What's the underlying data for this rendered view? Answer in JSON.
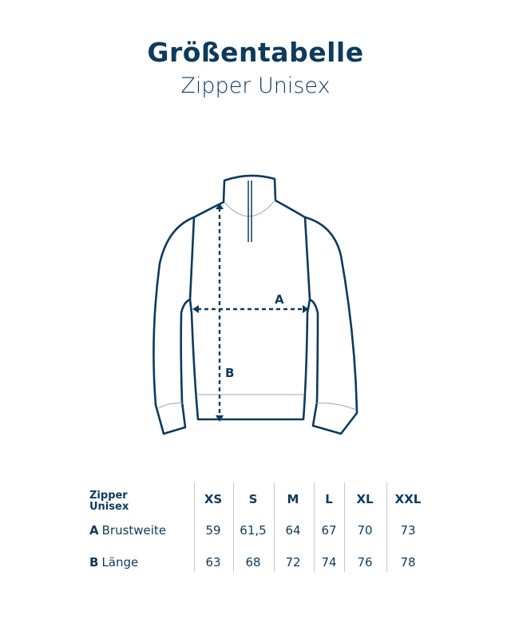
{
  "header": {
    "title": "Größentabelle",
    "subtitle": "Zipper Unisex"
  },
  "illustration": {
    "label_a": "A",
    "label_b": "B"
  },
  "table": {
    "corner_line1": "Zipper",
    "corner_line2": "Unisex",
    "sizes": [
      "XS",
      "S",
      "M",
      "L",
      "XL",
      "XXL"
    ],
    "rows": [
      {
        "key": "A",
        "label": "Brustweite",
        "values": [
          "59",
          "61,5",
          "64",
          "67",
          "70",
          "73"
        ]
      },
      {
        "key": "B",
        "label": "Länge",
        "values": [
          "63",
          "68",
          "72",
          "74",
          "76",
          "78"
        ]
      }
    ]
  },
  "colors": {
    "primary": "#0e3a5b",
    "divider": "#c8c8c8"
  }
}
